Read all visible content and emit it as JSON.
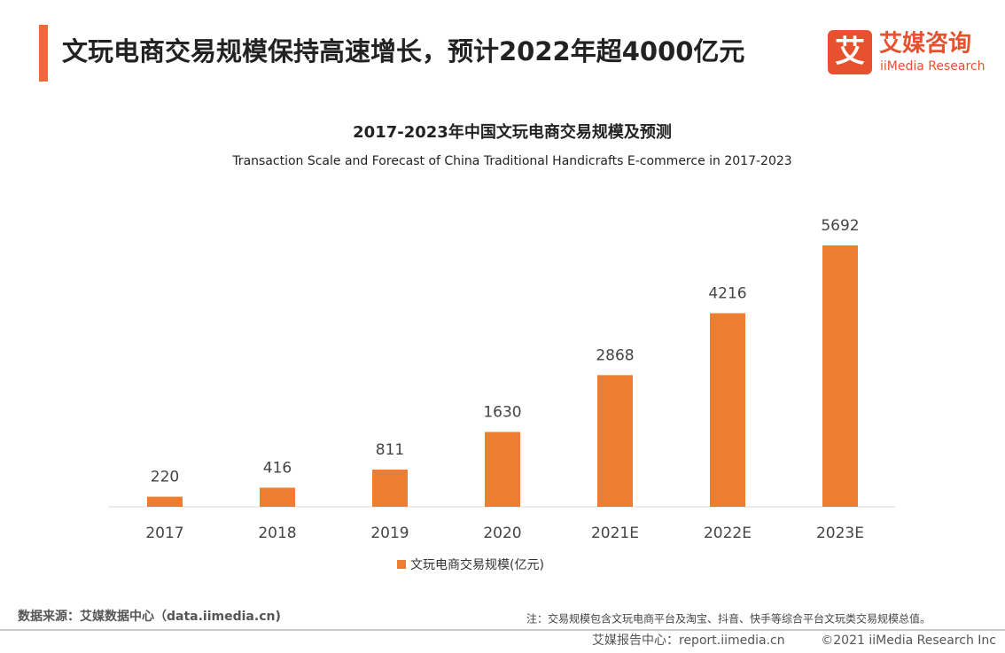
{
  "header": {
    "title": "文玩电商交易规模保持高速增长，预计2022年超4000亿元",
    "logo_mark": "艾",
    "logo_cn": "艾媒咨询",
    "logo_en": "iiMedia Research"
  },
  "chart_data": {
    "type": "bar",
    "title": "2017-2023年中国文玩电商交易规模及预测",
    "subtitle": "Transaction Scale and Forecast of China Traditional Handicrafts E-commerce in 2017-2023",
    "categories": [
      "2017",
      "2018",
      "2019",
      "2020",
      "2021E",
      "2022E",
      "2023E"
    ],
    "series": [
      {
        "name": "文玩电商交易规模(亿元)",
        "color": "#ed7d31",
        "values": [
          220,
          416,
          811,
          1630,
          2868,
          4216,
          5692
        ]
      }
    ]
  },
  "footer": {
    "source": "数据来源：艾媒数据中心（data.iimedia.cn)",
    "note": "注：交易规模包含文玩电商平台及淘宝、抖音、快手等综合平台文玩类交易规模总值。",
    "report": "艾媒报告中心：report.iimedia.cn",
    "copyright": "©2021  iiMedia Research  Inc"
  }
}
